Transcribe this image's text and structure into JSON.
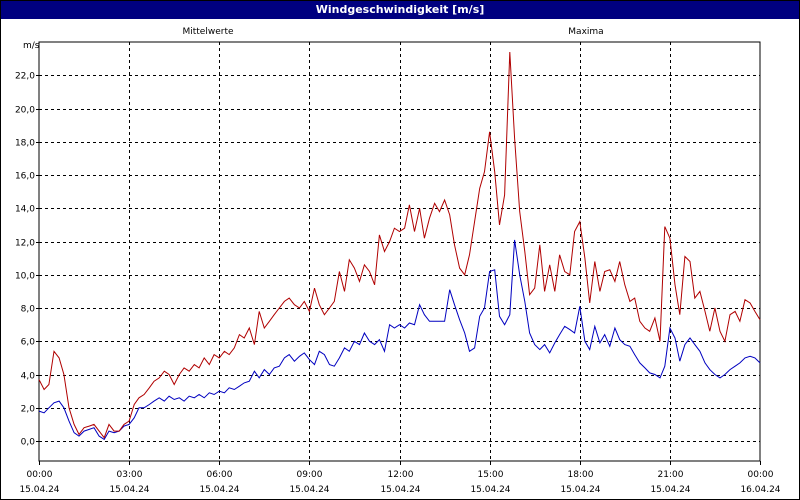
{
  "window": {
    "title": "Windgeschwindigkeit [m/s]"
  },
  "chart_data": {
    "type": "line",
    "title": "Windgeschwindigkeit [m/s]",
    "ylabel": "m/s",
    "ylim": [
      -1.2,
      24.0
    ],
    "yticks": [
      0,
      2,
      4,
      6,
      8,
      10,
      12,
      14,
      16,
      18,
      20,
      22
    ],
    "ytick_labels": [
      "0,0",
      "2,0",
      "4,0",
      "6,0",
      "8,0",
      "10,0",
      "12,0",
      "14,0",
      "16,0",
      "18,0",
      "20,0",
      "22,0"
    ],
    "xlim": [
      0,
      24
    ],
    "xticks": [
      0,
      3,
      6,
      9,
      12,
      15,
      18,
      21,
      24
    ],
    "xtick_labels": [
      {
        "time": "00:00",
        "date": "15.04.24"
      },
      {
        "time": "03:00",
        "date": "15.04.24"
      },
      {
        "time": "06:00",
        "date": "15.04.24"
      },
      {
        "time": "09:00",
        "date": "15.04.24"
      },
      {
        "time": "12:00",
        "date": "15.04.24"
      },
      {
        "time": "15:00",
        "date": "15.04.24"
      },
      {
        "time": "18:00",
        "date": "15.04.24"
      },
      {
        "time": "21:00",
        "date": "15.04.24"
      },
      {
        "time": "00:00",
        "date": "16.04.24"
      }
    ],
    "grid": true,
    "series": [
      {
        "name": "Mittelwerte",
        "color": "#0000c0",
        "x": [
          0.0,
          0.17,
          0.33,
          0.5,
          0.67,
          0.83,
          1.0,
          1.17,
          1.33,
          1.5,
          1.67,
          1.83,
          2.0,
          2.17,
          2.33,
          2.5,
          2.67,
          2.83,
          3.0,
          3.17,
          3.33,
          3.5,
          3.67,
          3.83,
          4.0,
          4.17,
          4.33,
          4.5,
          4.67,
          4.83,
          5.0,
          5.17,
          5.33,
          5.5,
          5.67,
          5.83,
          6.0,
          6.17,
          6.33,
          6.5,
          6.67,
          6.83,
          7.0,
          7.17,
          7.33,
          7.5,
          7.67,
          7.83,
          8.0,
          8.17,
          8.33,
          8.5,
          8.67,
          8.83,
          9.0,
          9.17,
          9.33,
          9.5,
          9.67,
          9.83,
          10.0,
          10.17,
          10.33,
          10.5,
          10.67,
          10.83,
          11.0,
          11.17,
          11.33,
          11.5,
          11.67,
          11.83,
          12.0,
          12.17,
          12.33,
          12.5,
          12.67,
          12.83,
          13.0,
          13.17,
          13.33,
          13.5,
          13.67,
          13.83,
          14.0,
          14.17,
          14.33,
          14.5,
          14.67,
          14.83,
          15.0,
          15.17,
          15.33,
          15.5,
          15.67,
          15.83,
          16.0,
          16.17,
          16.33,
          16.5,
          16.67,
          16.83,
          17.0,
          17.17,
          17.33,
          17.5,
          17.67,
          17.83,
          18.0,
          18.17,
          18.33,
          18.5,
          18.67,
          18.83,
          19.0,
          19.17,
          19.33,
          19.5,
          19.67,
          19.83,
          20.0,
          20.17,
          20.33,
          20.5,
          20.67,
          20.83,
          21.0,
          21.17,
          21.33,
          21.5,
          21.67,
          21.83,
          22.0,
          22.17,
          22.33,
          22.5,
          22.67,
          22.83,
          23.0,
          23.17,
          23.33,
          23.5,
          23.67,
          23.83,
          24.0
        ],
        "y": [
          1.8,
          1.7,
          2.0,
          2.3,
          2.4,
          2.0,
          1.2,
          0.5,
          0.3,
          0.6,
          0.7,
          0.8,
          0.3,
          0.1,
          0.6,
          0.5,
          0.6,
          0.9,
          1.0,
          1.4,
          2.0,
          2.0,
          2.2,
          2.4,
          2.6,
          2.4,
          2.7,
          2.5,
          2.6,
          2.4,
          2.7,
          2.6,
          2.8,
          2.6,
          2.9,
          2.8,
          3.0,
          2.9,
          3.2,
          3.1,
          3.3,
          3.5,
          3.6,
          4.2,
          3.8,
          4.3,
          4.0,
          4.4,
          4.5,
          5.0,
          5.2,
          4.8,
          5.1,
          5.3,
          4.9,
          4.6,
          5.4,
          5.2,
          4.6,
          4.5,
          5.0,
          5.6,
          5.4,
          6.0,
          5.8,
          6.5,
          6.0,
          5.8,
          6.1,
          5.4,
          7.0,
          6.8,
          7.0,
          6.8,
          7.1,
          7.0,
          8.2,
          7.6,
          7.2,
          7.2,
          7.2,
          7.2,
          9.1,
          8.2,
          7.3,
          6.5,
          5.4,
          5.6,
          7.5,
          8.0,
          10.2,
          10.3,
          7.5,
          7.0,
          7.6,
          12.1,
          10.0,
          8.4,
          6.5,
          5.8,
          5.5,
          5.8,
          5.3,
          5.9,
          6.4,
          6.9,
          6.7,
          6.5,
          8.1,
          6.0,
          5.5,
          6.9,
          5.9,
          6.4,
          5.7,
          6.8,
          6.1,
          5.8,
          5.7,
          5.2,
          4.7,
          4.4,
          4.1,
          4.0,
          3.8,
          4.5,
          6.8,
          6.2,
          4.8,
          5.8,
          6.2,
          5.8,
          5.4,
          4.7,
          4.3,
          4.0,
          3.8,
          4.0,
          4.3,
          4.5,
          4.7,
          5.0,
          5.1,
          5.0,
          4.7
        ]
      },
      {
        "name": "Maxima",
        "color": "#b00000",
        "x": [
          0.0,
          0.17,
          0.33,
          0.5,
          0.67,
          0.83,
          1.0,
          1.17,
          1.33,
          1.5,
          1.67,
          1.83,
          2.0,
          2.17,
          2.33,
          2.5,
          2.67,
          2.83,
          3.0,
          3.17,
          3.33,
          3.5,
          3.67,
          3.83,
          4.0,
          4.17,
          4.33,
          4.5,
          4.67,
          4.83,
          5.0,
          5.17,
          5.33,
          5.5,
          5.67,
          5.83,
          6.0,
          6.17,
          6.33,
          6.5,
          6.67,
          6.83,
          7.0,
          7.17,
          7.33,
          7.5,
          7.67,
          7.83,
          8.0,
          8.17,
          8.33,
          8.5,
          8.67,
          8.83,
          9.0,
          9.17,
          9.33,
          9.5,
          9.67,
          9.83,
          10.0,
          10.17,
          10.33,
          10.5,
          10.67,
          10.83,
          11.0,
          11.17,
          11.33,
          11.5,
          11.67,
          11.83,
          12.0,
          12.17,
          12.33,
          12.5,
          12.67,
          12.83,
          13.0,
          13.17,
          13.33,
          13.5,
          13.67,
          13.83,
          14.0,
          14.17,
          14.33,
          14.5,
          14.67,
          14.83,
          15.0,
          15.17,
          15.33,
          15.5,
          15.67,
          15.83,
          16.0,
          16.17,
          16.33,
          16.5,
          16.67,
          16.83,
          17.0,
          17.17,
          17.33,
          17.5,
          17.67,
          17.83,
          18.0,
          18.17,
          18.33,
          18.5,
          18.67,
          18.83,
          19.0,
          19.17,
          19.33,
          19.5,
          19.67,
          19.83,
          20.0,
          20.17,
          20.33,
          20.5,
          20.67,
          20.83,
          21.0,
          21.17,
          21.33,
          21.5,
          21.67,
          21.83,
          22.0,
          22.17,
          22.33,
          22.5,
          22.67,
          22.83,
          23.0,
          23.17,
          23.33,
          23.5,
          23.67,
          23.83,
          24.0
        ],
        "y": [
          3.7,
          3.1,
          3.4,
          5.4,
          5.0,
          4.0,
          2.0,
          1.0,
          0.4,
          0.8,
          0.9,
          1.0,
          0.6,
          0.2,
          1.0,
          0.6,
          0.6,
          1.0,
          1.2,
          2.2,
          2.6,
          2.8,
          3.2,
          3.6,
          3.8,
          4.2,
          4.0,
          3.4,
          4.0,
          4.4,
          4.2,
          4.6,
          4.4,
          5.0,
          4.6,
          5.2,
          5.0,
          5.4,
          5.2,
          5.6,
          6.4,
          6.2,
          6.8,
          5.8,
          7.8,
          6.8,
          7.2,
          7.6,
          8.0,
          8.4,
          8.6,
          8.2,
          8.0,
          8.4,
          7.8,
          9.2,
          8.2,
          7.6,
          8.0,
          8.4,
          10.2,
          9.0,
          10.9,
          10.4,
          9.6,
          10.6,
          10.2,
          9.4,
          12.4,
          11.4,
          12.0,
          12.8,
          12.6,
          12.8,
          14.2,
          12.6,
          14.0,
          12.2,
          13.4,
          14.3,
          13.8,
          14.5,
          13.6,
          11.8,
          10.4,
          10.0,
          11.2,
          13.2,
          15.2,
          16.2,
          18.6,
          16.2,
          13.0,
          14.8,
          23.4,
          18.2,
          13.8,
          11.4,
          8.8,
          9.2,
          11.8,
          9.0,
          10.6,
          9.0,
          11.2,
          10.2,
          10.0,
          12.6,
          13.2,
          11.0,
          8.3,
          10.8,
          9.0,
          10.2,
          10.3,
          9.6,
          10.8,
          9.4,
          8.4,
          8.6,
          7.2,
          6.8,
          6.6,
          7.4,
          6.0,
          12.9,
          12.2,
          9.4,
          7.6,
          11.1,
          10.8,
          8.6,
          9.0,
          7.8,
          6.6,
          8.0,
          6.6,
          6.0,
          7.6,
          7.8,
          7.2,
          8.5,
          8.3,
          7.8,
          7.3
        ]
      }
    ]
  }
}
